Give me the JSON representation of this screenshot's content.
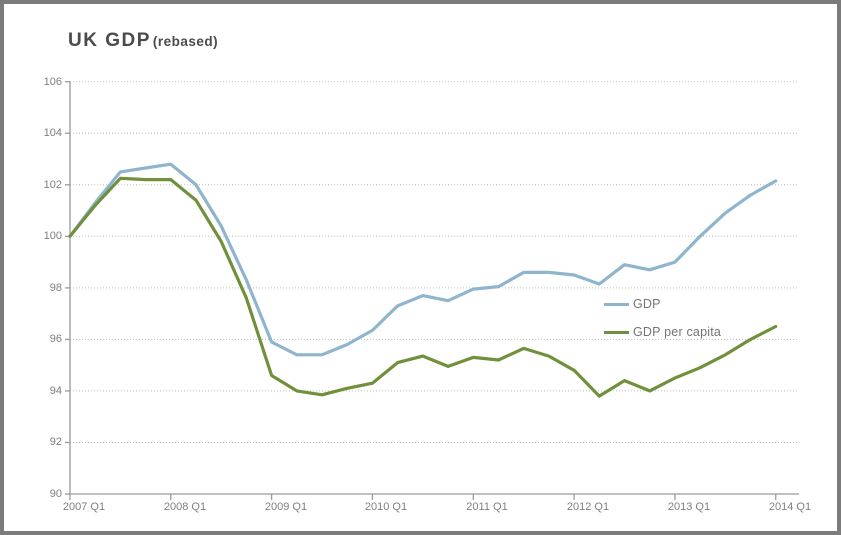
{
  "window": {
    "background": "#ffffff",
    "border_color": "#7b7b7b"
  },
  "title": {
    "main": "UK GDP",
    "suffix": "(rebased)",
    "color": "#4b4b4b"
  },
  "axis": {
    "line_color": "#9a9a9a",
    "tick_label_color": "#7f7f7f",
    "gridline_color": "#bdbdbd"
  },
  "legend": {
    "position": "inside-right",
    "text_color": "#757575"
  },
  "chart_data": {
    "type": "line",
    "title": "UK GDP (rebased)",
    "xlabel": "",
    "ylabel": "",
    "ylim": [
      90,
      106
    ],
    "y_ticks": [
      90,
      92,
      94,
      96,
      98,
      100,
      102,
      104,
      106
    ],
    "x_tick_labels": [
      "2007 Q1",
      "2008 Q1",
      "2009 Q1",
      "2010 Q1",
      "2011 Q1",
      "2012 Q1",
      "2013 Q1",
      "2014 Q1"
    ],
    "grid": "horizontal-dotted",
    "legend_position": "inside right middle",
    "categories": [
      "2007 Q1",
      "2007 Q2",
      "2007 Q3",
      "2007 Q4",
      "2008 Q1",
      "2008 Q2",
      "2008 Q3",
      "2008 Q4",
      "2009 Q1",
      "2009 Q2",
      "2009 Q3",
      "2009 Q4",
      "2010 Q1",
      "2010 Q2",
      "2010 Q3",
      "2010 Q4",
      "2011 Q1",
      "2011 Q2",
      "2011 Q3",
      "2011 Q4",
      "2012 Q1",
      "2012 Q2",
      "2012 Q3",
      "2012 Q4",
      "2013 Q1",
      "2013 Q2",
      "2013 Q3",
      "2013 Q4",
      "2014 Q1"
    ],
    "series": [
      {
        "name": "GDP",
        "color": "#8EB4CE",
        "values": [
          100,
          101.3,
          102.5,
          102.65,
          102.8,
          102.0,
          100.4,
          98.3,
          95.9,
          95.4,
          95.4,
          95.8,
          96.35,
          97.3,
          97.7,
          97.5,
          97.95,
          98.05,
          98.6,
          98.6,
          98.5,
          98.15,
          98.9,
          98.7,
          99.0,
          100.0,
          100.9,
          101.6,
          102.15
        ]
      },
      {
        "name": "GDP per capita",
        "color": "#70903C",
        "values": [
          100,
          101.2,
          102.25,
          102.2,
          102.2,
          101.4,
          99.8,
          97.6,
          94.6,
          94.0,
          93.85,
          94.1,
          94.3,
          95.1,
          95.35,
          94.95,
          95.3,
          95.2,
          95.65,
          95.35,
          94.8,
          93.8,
          94.4,
          94.0,
          94.5,
          94.9,
          95.4,
          96.0,
          96.5
        ]
      }
    ]
  }
}
